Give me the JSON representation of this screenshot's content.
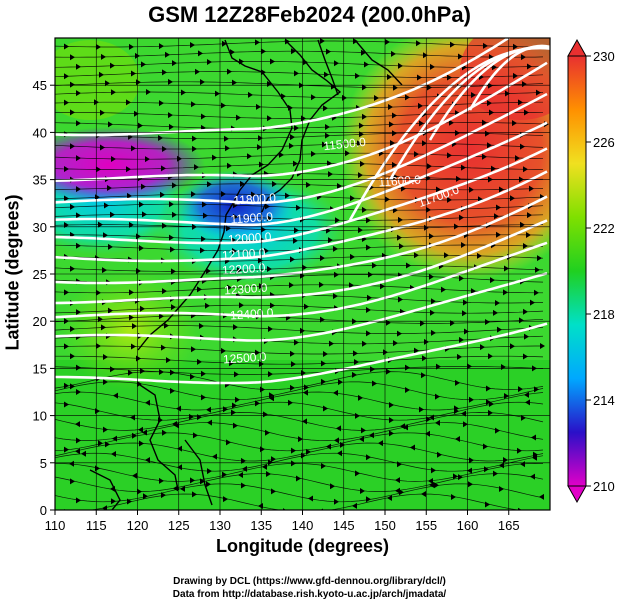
{
  "title": "GSM 12Z28Feb2024 (200.0hPa)",
  "x_axis": {
    "label": "Longitude (degrees)",
    "min": 110,
    "max": 170,
    "ticks": [
      "110",
      "115",
      "120",
      "125",
      "130",
      "135",
      "140",
      "145",
      "150",
      "155",
      "160",
      "165"
    ]
  },
  "y_axis": {
    "label": "Latitude  (degrees)",
    "min": 0,
    "max": 50,
    "ticks": [
      "0",
      "5",
      "10",
      "15",
      "20",
      "25",
      "30",
      "35",
      "40",
      "45"
    ]
  },
  "colorbar": {
    "min": 210,
    "max": 230,
    "labels": [
      "210",
      "214",
      "218",
      "222",
      "226",
      "230"
    ],
    "stops": [
      "#e100c8",
      "#2a10c8",
      "#00a8ff",
      "#00e0c8",
      "#20d020",
      "#7fe000",
      "#f0e020",
      "#ff9000",
      "#e83030"
    ]
  },
  "contours": [
    {
      "label": "11500.0"
    },
    {
      "label": "11600.0"
    },
    {
      "label": "11700.0"
    },
    {
      "label": "11800.0"
    },
    {
      "label": "11900.0"
    },
    {
      "label": "12000.0"
    },
    {
      "label": "12100.0"
    },
    {
      "label": "12200.0"
    },
    {
      "label": "12300.0"
    },
    {
      "label": "12400.0"
    },
    {
      "label": "12500.0"
    }
  ],
  "credits": {
    "line1": "Drawing by DCL (https://www.gfd-dennou.org/library/dcl/)",
    "line2": "Data from http://database.rish.kyoto-u.ac.jp/arch/jmadata/"
  }
}
